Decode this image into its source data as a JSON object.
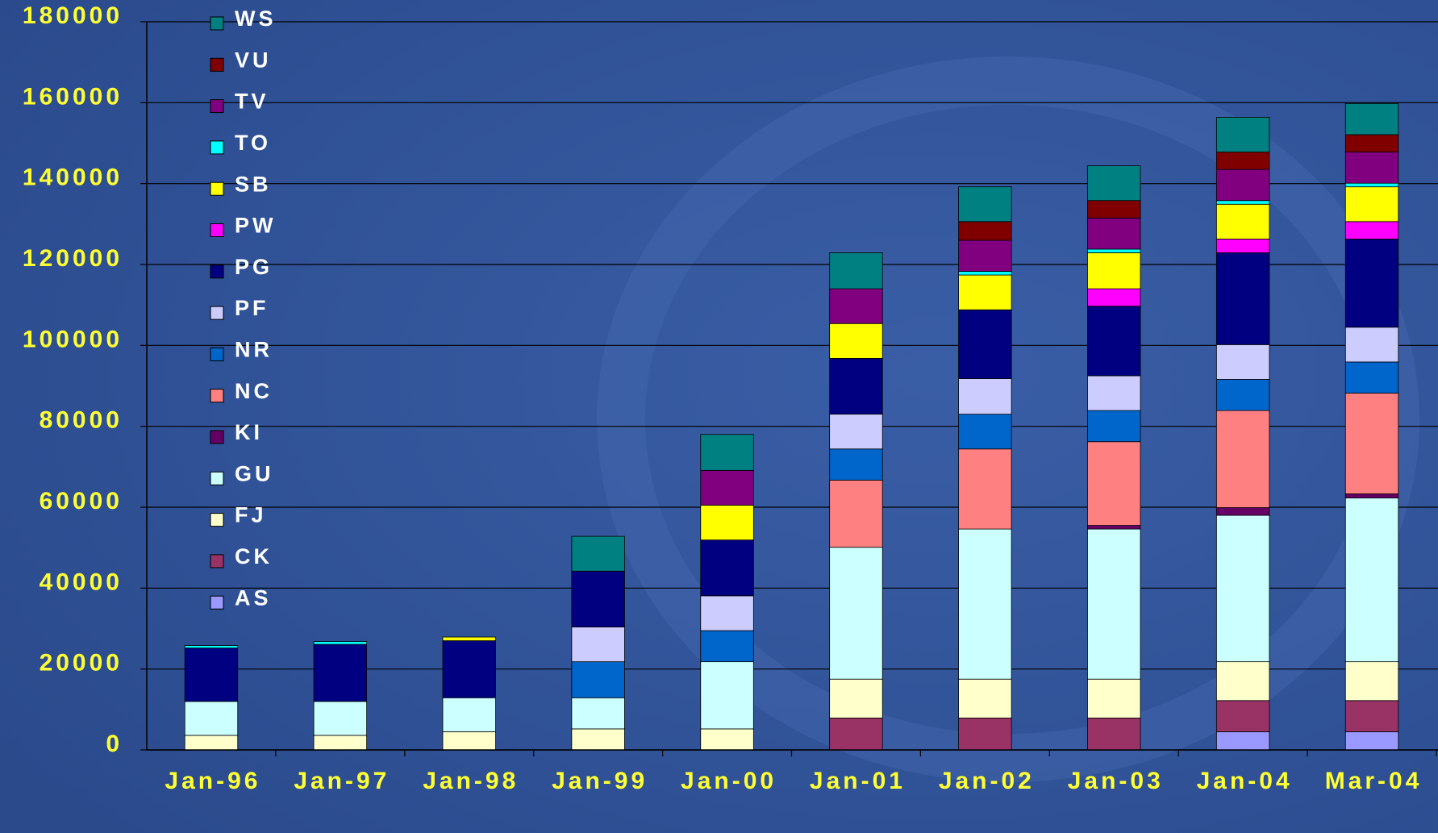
{
  "chart_data": {
    "type": "stacked-bar",
    "categories": [
      "Jan-96",
      "Jan-97",
      "Jan-98",
      "Jan-99",
      "Jan-00",
      "Jan-01",
      "Jan-02",
      "Jan-03",
      "Jan-04",
      "Mar-04"
    ],
    "ylim": [
      0,
      180000
    ],
    "yticks": [
      0,
      20000,
      40000,
      60000,
      80000,
      100000,
      120000,
      140000,
      160000,
      180000
    ],
    "grid": true,
    "legend": "top-left",
    "series": [
      {
        "name": "AS",
        "color": "#9999ff",
        "values": [
          0,
          0,
          0,
          0,
          0,
          0,
          0,
          0,
          4500,
          4500
        ]
      },
      {
        "name": "CK",
        "color": "#993366",
        "values": [
          0,
          0,
          0,
          0,
          0,
          7900,
          7900,
          7900,
          7700,
          7700
        ]
      },
      {
        "name": "FJ",
        "color": "#ffffcc",
        "values": [
          3600,
          3600,
          4500,
          5200,
          5200,
          9600,
          9600,
          9600,
          9600,
          9600
        ]
      },
      {
        "name": "GU",
        "color": "#ccffff",
        "values": [
          8400,
          8400,
          8400,
          7700,
          16600,
          32600,
          37100,
          37100,
          36200,
          40500
        ]
      },
      {
        "name": "KI",
        "color": "#660066",
        "values": [
          0,
          0,
          0,
          0,
          0,
          0,
          0,
          900,
          1900,
          1000
        ]
      },
      {
        "name": "NC",
        "color": "#ff8080",
        "values": [
          0,
          0,
          0,
          0,
          0,
          16600,
          19800,
          20700,
          24000,
          24900
        ]
      },
      {
        "name": "NR",
        "color": "#0066cc",
        "values": [
          0,
          0,
          0,
          8900,
          7700,
          7700,
          8600,
          7700,
          7700,
          7700
        ]
      },
      {
        "name": "PF",
        "color": "#ccccff",
        "values": [
          0,
          0,
          0,
          8600,
          8600,
          8600,
          8800,
          8600,
          8600,
          8600
        ]
      },
      {
        "name": "PG",
        "color": "#000080",
        "values": [
          13200,
          14100,
          14100,
          13800,
          13800,
          13800,
          17000,
          17200,
          22700,
          21800
        ]
      },
      {
        "name": "PW",
        "color": "#ff00ff",
        "values": [
          0,
          0,
          0,
          0,
          0,
          0,
          0,
          4300,
          3400,
          4300
        ]
      },
      {
        "name": "SB",
        "color": "#ffff00",
        "values": [
          0,
          0,
          900,
          0,
          8600,
          8600,
          8600,
          8900,
          8600,
          8600
        ]
      },
      {
        "name": "TO",
        "color": "#00ffff",
        "values": [
          600,
          700,
          0,
          0,
          0,
          0,
          900,
          900,
          900,
          900
        ]
      },
      {
        "name": "TV",
        "color": "#800080",
        "values": [
          0,
          0,
          0,
          0,
          8600,
          8600,
          7700,
          7700,
          7700,
          7700
        ]
      },
      {
        "name": "VU",
        "color": "#800000",
        "values": [
          0,
          0,
          0,
          0,
          0,
          0,
          4600,
          4300,
          4300,
          4300
        ]
      },
      {
        "name": "WS",
        "color": "#008080",
        "values": [
          0,
          0,
          0,
          8600,
          8900,
          8900,
          8600,
          8600,
          8600,
          7700
        ]
      }
    ]
  }
}
